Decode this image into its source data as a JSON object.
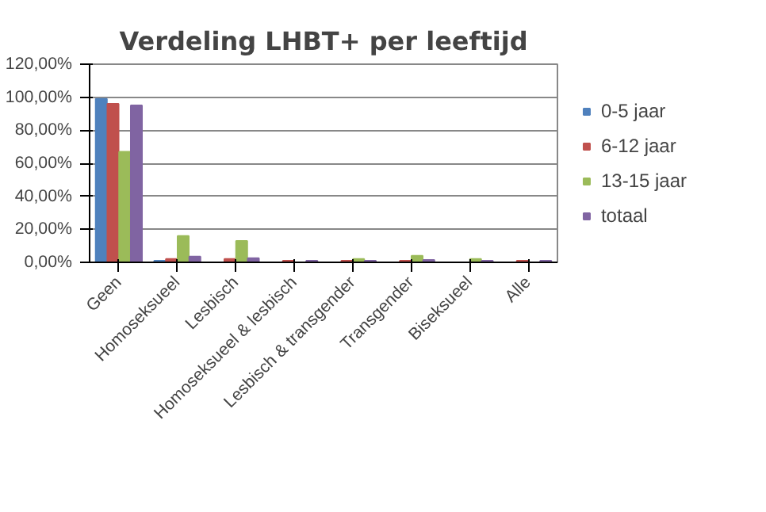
{
  "chart_data": {
    "type": "bar",
    "title": "Verdeling LHBT+ per leeftijd",
    "categories": [
      "Geen",
      "Homoseksueel",
      "Lesbisch",
      "Homoseksueel & lesbisch",
      "Lesbisch & transgender",
      "Transgender",
      "Biseksueel",
      "Alle"
    ],
    "series": [
      {
        "name": "0-5 jaar",
        "color": "#4f81bd",
        "values": [
          99,
          1,
          0,
          0,
          0,
          0,
          0,
          0
        ]
      },
      {
        "name": "6-12 jaar",
        "color": "#c0504d",
        "values": [
          96,
          2,
          2,
          1,
          1,
          1,
          0,
          1
        ]
      },
      {
        "name": "13-15 jaar",
        "color": "#9bbb59",
        "values": [
          67,
          16,
          13,
          0,
          2,
          4,
          2,
          0
        ]
      },
      {
        "name": "totaal",
        "color": "#8064a2",
        "values": [
          95,
          3.5,
          2.5,
          1,
          1,
          1.5,
          1,
          1
        ]
      }
    ],
    "ylim": [
      0,
      120
    ],
    "yticks": [
      {
        "value": 0,
        "label": "0,00%"
      },
      {
        "value": 20,
        "label": "20,00%"
      },
      {
        "value": 40,
        "label": "40,00%"
      },
      {
        "value": 60,
        "label": "60,00%"
      },
      {
        "value": 80,
        "label": "80,00%"
      },
      {
        "value": 100,
        "label": "100,00%"
      },
      {
        "value": 120,
        "label": "120,00%"
      }
    ],
    "grid": "y",
    "legend": "right"
  }
}
